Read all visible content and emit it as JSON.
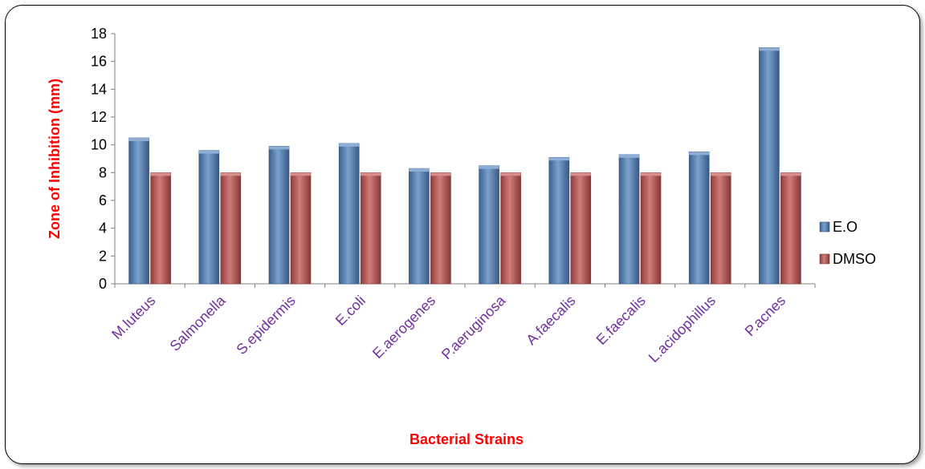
{
  "chart_data": {
    "type": "bar",
    "title": "",
    "xlabel": "Bacterial Strains",
    "ylabel": "Zone of Inhibition (mm)",
    "ylim": [
      0,
      18
    ],
    "ytick_step": 2,
    "categories": [
      "M.luteus",
      "Salmonella",
      "S.epidermis",
      "E.coli",
      "E.aerogenes",
      "P.aeruginosa",
      "A.faecalis",
      "E.faecalis",
      "L.acidophillus",
      "P.acnes"
    ],
    "series": [
      {
        "name": "E.O",
        "values": [
          10.5,
          9.6,
          9.9,
          10.1,
          8.3,
          8.5,
          9.1,
          9.3,
          9.5,
          17.0
        ],
        "color": "#4f81bd"
      },
      {
        "name": "DMSO",
        "values": [
          8,
          8,
          8,
          8,
          8,
          8,
          8,
          8,
          8,
          8
        ],
        "color": "#c0504d"
      }
    ],
    "grid": false,
    "legend": "right"
  },
  "colors": {
    "axis_title": "#ff0000",
    "category_labels": "#7030a0",
    "border": "#000000"
  }
}
